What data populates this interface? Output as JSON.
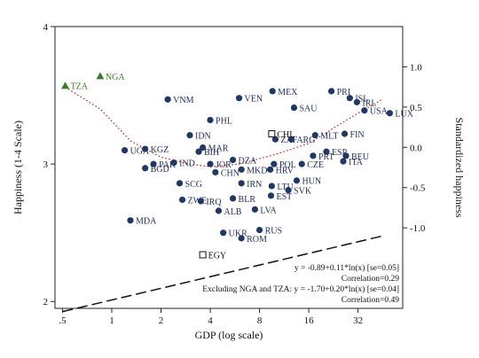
{
  "chart_data": {
    "type": "scatter",
    "title": "",
    "xlabel": "GDP (log scale)",
    "ylabel": "Happiness (1-4 Scale)",
    "y2label": "Standardized happiness",
    "xscale": "log",
    "xlim": [
      0.45,
      60
    ],
    "ylim": [
      1.95,
      4.0
    ],
    "y2lim": [
      -2.0,
      1.5
    ],
    "xticks": [
      0.5,
      1,
      2,
      4,
      8,
      16,
      32
    ],
    "xtick_labels": [
      ".5",
      "1",
      "2",
      "4",
      "8",
      "16",
      "32"
    ],
    "yticks": [
      2,
      3,
      4
    ],
    "y2ticks": [
      -1.0,
      -0.5,
      0.0,
      0.5,
      1.0
    ],
    "y2tick_labels": [
      "-1.0",
      "-0.5",
      "0.0",
      "0.5",
      "1.0"
    ],
    "grid": false,
    "colors": {
      "point": "#1f3864",
      "outlier": "#3d7a2a",
      "fit": "#111111",
      "lowess": "#cc1111"
    },
    "series": [
      {
        "marker": "filled-circle",
        "points": [
          {
            "label": "VNM",
            "x": 2.2,
            "y": 3.47
          },
          {
            "label": "VEN",
            "x": 6.0,
            "y": 3.48
          },
          {
            "label": "MEX",
            "x": 9.6,
            "y": 3.53
          },
          {
            "label": "PRI",
            "x": 22.0,
            "y": 3.53
          },
          {
            "label": "ISL",
            "x": 28.5,
            "y": 3.48
          },
          {
            "label": "IRL",
            "x": 31.5,
            "y": 3.45
          },
          {
            "label": "LUX",
            "x": 50.0,
            "y": 3.37
          },
          {
            "label": "USA",
            "x": 35.0,
            "y": 3.39
          },
          {
            "label": "SAU",
            "x": 13.0,
            "y": 3.41
          },
          {
            "label": "PHL",
            "x": 4.0,
            "y": 3.32
          },
          {
            "label": "IDN",
            "x": 3.0,
            "y": 3.21
          },
          {
            "label": "MAR",
            "x": 3.6,
            "y": 3.12
          },
          {
            "label": "ZAF",
            "x": 10.0,
            "y": 3.18
          },
          {
            "label": "ARG",
            "x": 12.5,
            "y": 3.18
          },
          {
            "label": "MLT",
            "x": 17.5,
            "y": 3.21
          },
          {
            "label": "FIN",
            "x": 26.5,
            "y": 3.22
          },
          {
            "label": "ESP",
            "x": 20.5,
            "y": 3.09
          },
          {
            "label": "PRT",
            "x": 17.0,
            "y": 3.06
          },
          {
            "label": "BEU",
            "x": 27.0,
            "y": 3.06
          },
          {
            "label": "ITA",
            "x": 26.0,
            "y": 3.02
          },
          {
            "label": "UGA",
            "x": 1.2,
            "y": 3.1
          },
          {
            "label": "KGZ",
            "x": 1.6,
            "y": 3.11
          },
          {
            "label": "PAK",
            "x": 1.8,
            "y": 3.0
          },
          {
            "label": "IND",
            "x": 2.4,
            "y": 3.01
          },
          {
            "label": "BGD",
            "x": 1.6,
            "y": 2.97
          },
          {
            "label": "BIH",
            "x": 3.4,
            "y": 3.09
          },
          {
            "label": "DZA",
            "x": 5.5,
            "y": 3.03
          },
          {
            "label": "JOR",
            "x": 4.0,
            "y": 3.0
          },
          {
            "label": "CHN",
            "x": 4.3,
            "y": 2.94
          },
          {
            "label": "MKD",
            "x": 6.2,
            "y": 2.96
          },
          {
            "label": "HRV",
            "x": 9.3,
            "y": 2.96
          },
          {
            "label": "POL",
            "x": 9.8,
            "y": 3.0
          },
          {
            "label": "CZE",
            "x": 14.5,
            "y": 3.0
          },
          {
            "label": "SCG",
            "x": 2.6,
            "y": 2.86
          },
          {
            "label": "IRN",
            "x": 6.2,
            "y": 2.86
          },
          {
            "label": "LTU",
            "x": 9.5,
            "y": 2.84
          },
          {
            "label": "EST",
            "x": 9.4,
            "y": 2.77
          },
          {
            "label": "SVK",
            "x": 12.0,
            "y": 2.81
          },
          {
            "label": "HUN",
            "x": 13.5,
            "y": 2.88
          },
          {
            "label": "ZWE",
            "x": 2.7,
            "y": 2.74
          },
          {
            "label": "IRQ",
            "x": 3.5,
            "y": 2.73
          },
          {
            "label": "BLR",
            "x": 5.5,
            "y": 2.75
          },
          {
            "label": "ALB",
            "x": 4.5,
            "y": 2.66
          },
          {
            "label": "LVA",
            "x": 7.5,
            "y": 2.67
          },
          {
            "label": "MDA",
            "x": 1.3,
            "y": 2.59
          },
          {
            "label": "UKR",
            "x": 4.8,
            "y": 2.5
          },
          {
            "label": "RUS",
            "x": 8.0,
            "y": 2.52
          },
          {
            "label": "ROM",
            "x": 6.2,
            "y": 2.46
          }
        ]
      },
      {
        "marker": "triangle",
        "points": [
          {
            "label": "TZA",
            "x": 0.52,
            "y": 3.57
          },
          {
            "label": "NGA",
            "x": 0.85,
            "y": 3.64
          }
        ]
      },
      {
        "marker": "hollow-square",
        "points": [
          {
            "label": "CHL",
            "x": 9.5,
            "y": 3.22
          },
          {
            "label": "EGY",
            "x": 3.6,
            "y": 2.34
          }
        ]
      }
    ],
    "fit_line": {
      "intercept": -0.89,
      "slope": 0.11,
      "style": "dashed"
    },
    "lowess": [
      [
        0.52,
        3.56
      ],
      [
        0.85,
        3.4
      ],
      [
        1.3,
        3.17
      ],
      [
        2.0,
        3.05
      ],
      [
        3.0,
        3.0
      ],
      [
        4.0,
        2.98
      ],
      [
        6.0,
        3.0
      ],
      [
        10.0,
        3.07
      ],
      [
        16.0,
        3.15
      ],
      [
        24.0,
        3.28
      ],
      [
        32.0,
        3.37
      ],
      [
        45.0,
        3.47
      ]
    ],
    "annotations": [
      "y = -0.89+0.11*ln(x) [se=0.05]",
      "Correlation=0.29",
      "Excluding NGA and TZA: y = -1.70+0.20*ln(x) [se=0.04]",
      "Correlation=0.49"
    ]
  }
}
